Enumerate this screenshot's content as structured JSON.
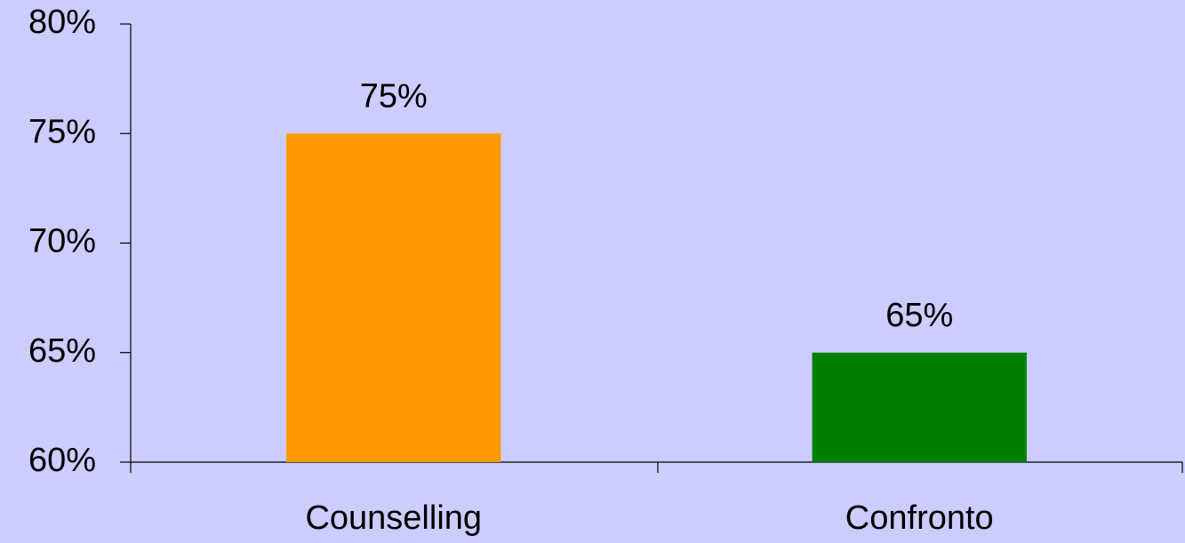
{
  "chart_data": {
    "type": "bar",
    "categories": [
      "Counselling",
      "Confronto"
    ],
    "values": [
      75,
      65
    ],
    "value_labels": [
      "75%",
      "65%"
    ],
    "colors": [
      "#ff9900",
      "#008000"
    ],
    "ylim": [
      60,
      80
    ],
    "yticks": [
      {
        "value": 60,
        "label": "60%"
      },
      {
        "value": 65,
        "label": "65%"
      },
      {
        "value": 70,
        "label": "70%"
      },
      {
        "value": 75,
        "label": "75%"
      },
      {
        "value": 80,
        "label": "80%"
      }
    ],
    "grid": false
  }
}
